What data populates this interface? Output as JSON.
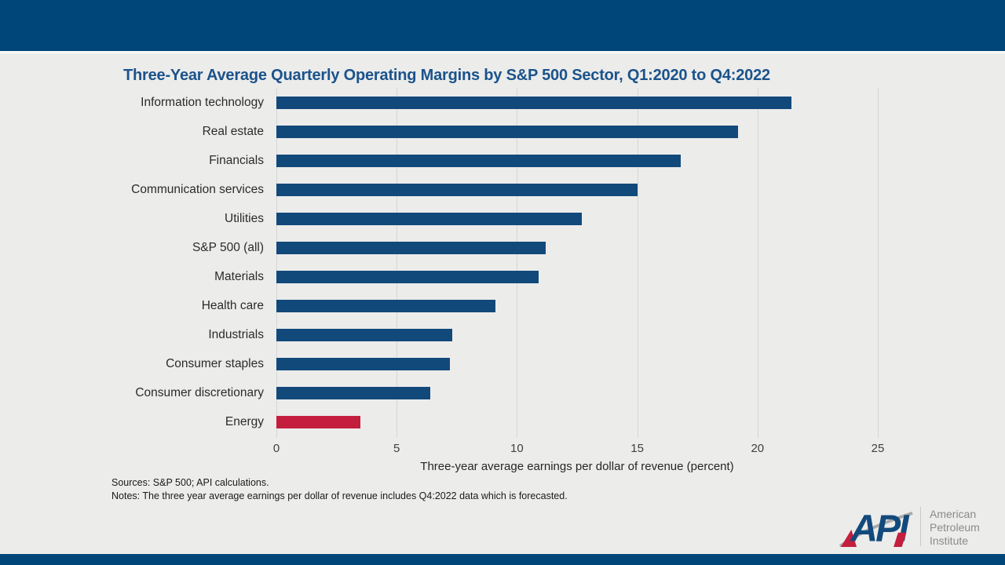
{
  "slide": {
    "title": "Three-Year Average Quarterly Operating Margins by S&P 500 Sector, Q1:2020 to Q4:2022",
    "sources": "Sources: S&P 500;  API calculations.",
    "notes": "Notes: The three year average earnings per dollar of revenue includes Q4:2022 data which is forecasted."
  },
  "chart_data": {
    "type": "bar",
    "orientation": "horizontal",
    "title": "Three-Year Average Quarterly Operating Margins by S&P 500 Sector, Q1:2020 to Q4:2022",
    "categories": [
      "Information technology",
      "Real estate",
      "Financials",
      "Communication services",
      "Utilities",
      "S&P 500 (all)",
      "Materials",
      "Health care",
      "Industrials",
      "Consumer staples",
      "Consumer discretionary",
      "Energy"
    ],
    "values": [
      21.4,
      19.2,
      16.8,
      15.0,
      12.7,
      11.2,
      10.9,
      9.1,
      7.3,
      7.2,
      6.4,
      3.5
    ],
    "xlabel": "Three-year average earnings per dollar of revenue (percent)",
    "xlim": [
      0,
      25
    ],
    "xticks": [
      0,
      5,
      10,
      15,
      20,
      25
    ],
    "grid": "vertical-gridlines",
    "legend": "none",
    "bar_color": "#12497B",
    "highlight_index": 11,
    "highlight_color": "#C41E3E",
    "highlight_category": "Energy"
  },
  "logo": {
    "mark": "API",
    "org_lines": [
      "American",
      "Petroleum",
      "Institute"
    ]
  },
  "colors": {
    "band_navy": "#004678",
    "background": "#ECECEB",
    "title_navy": "#1B538B",
    "gridline": "#D6D6D5",
    "logo_gray": "#8A8A8A",
    "logo_red": "#C41E3E",
    "logo_navy": "#134A7C"
  }
}
